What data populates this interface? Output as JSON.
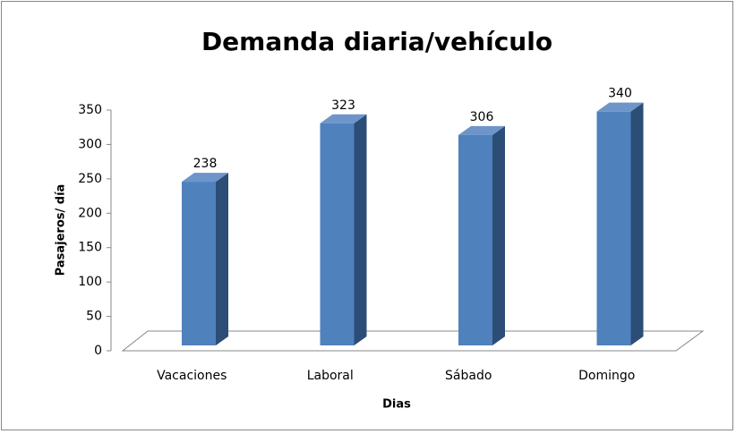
{
  "chart_data": {
    "type": "bar3d",
    "title": "Demanda diaria/vehículo",
    "x_label": "Dias",
    "y_label": "Pasajeros/ día",
    "categories": [
      "Vacaciones",
      "Laboral",
      "Sábado",
      "Domingo"
    ],
    "values": [
      238,
      323,
      306,
      340
    ],
    "color": "#4f81bd",
    "ylim": [
      0,
      350
    ],
    "yticks": [
      0,
      50,
      100,
      150,
      200,
      250,
      300,
      350
    ]
  }
}
